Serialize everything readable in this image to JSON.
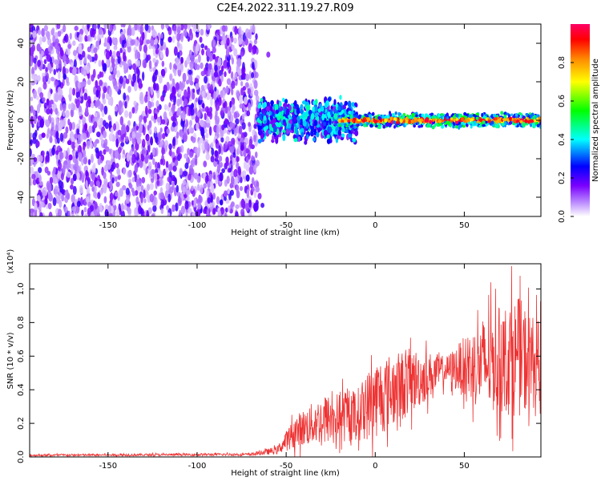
{
  "title": "C2E4.2022.311.19.27.R09",
  "chart_data": [
    {
      "type": "heatmap",
      "title": "C2E4.2022.311.19.27.R09",
      "xlabel": "Height of straight line (km)",
      "ylabel": "Frequency (Hz)",
      "xlim": [
        -194,
        93
      ],
      "ylim": [
        -50,
        50
      ],
      "x_ticks": [
        -150,
        -100,
        -50,
        0,
        50
      ],
      "y_ticks": [
        -40,
        -20,
        0,
        20,
        40
      ],
      "colorbar": {
        "label": "Normalized spectral amplitude",
        "range": [
          0,
          1
        ],
        "ticks": [
          "0.0",
          "0.2",
          "0.4",
          "0.6",
          "0.8"
        ],
        "colors": [
          "#ffffff",
          "#7a00ff",
          "#0000ff",
          "#00ffff",
          "#00ff00",
          "#ffff00",
          "#ff8800",
          "#ff0000",
          "#ff0066"
        ]
      },
      "signal": [
        {
          "x_range": [
            -194,
            -66
          ],
          "freq_spread": 50,
          "amplitude": 0.1,
          "description_source": "noise"
        },
        {
          "x_range": [
            -66,
            -10
          ],
          "freq_spread": 8,
          "amplitude": 0.4
        },
        {
          "x_range": [
            -10,
            93
          ],
          "freq_spread": 3,
          "amplitude": 0.9
        }
      ],
      "grid": false
    },
    {
      "type": "line",
      "xlabel": "Height of straight line (km)",
      "ylabel": "SNR (10 * v/v)",
      "y_scale_label": "(x10⁴)",
      "xlim": [
        -194,
        93
      ],
      "ylim": [
        0,
        1.15
      ],
      "x_ticks": [
        -150,
        -100,
        -50,
        0,
        50
      ],
      "y_ticks": [
        "0.0",
        "0.2",
        "0.4",
        "0.6",
        "0.8",
        "1.0"
      ],
      "color": "#ee3333",
      "envelope": [
        {
          "x": -194,
          "mean": 0.01,
          "amp": 0.008
        },
        {
          "x": -70,
          "mean": 0.015,
          "amp": 0.01
        },
        {
          "x": -55,
          "mean": 0.04,
          "amp": 0.03
        },
        {
          "x": -45,
          "mean": 0.15,
          "amp": 0.12
        },
        {
          "x": -30,
          "mean": 0.22,
          "amp": 0.18
        },
        {
          "x": -10,
          "mean": 0.25,
          "amp": 0.2
        },
        {
          "x": 0,
          "mean": 0.35,
          "amp": 0.3
        },
        {
          "x": 20,
          "mean": 0.45,
          "amp": 0.25
        },
        {
          "x": 40,
          "mean": 0.52,
          "amp": 0.1
        },
        {
          "x": 60,
          "mean": 0.55,
          "amp": 0.35
        },
        {
          "x": 80,
          "mean": 0.6,
          "amp": 0.45
        },
        {
          "x": 93,
          "mean": 0.55,
          "amp": 0.3
        }
      ],
      "grid": false
    }
  ]
}
